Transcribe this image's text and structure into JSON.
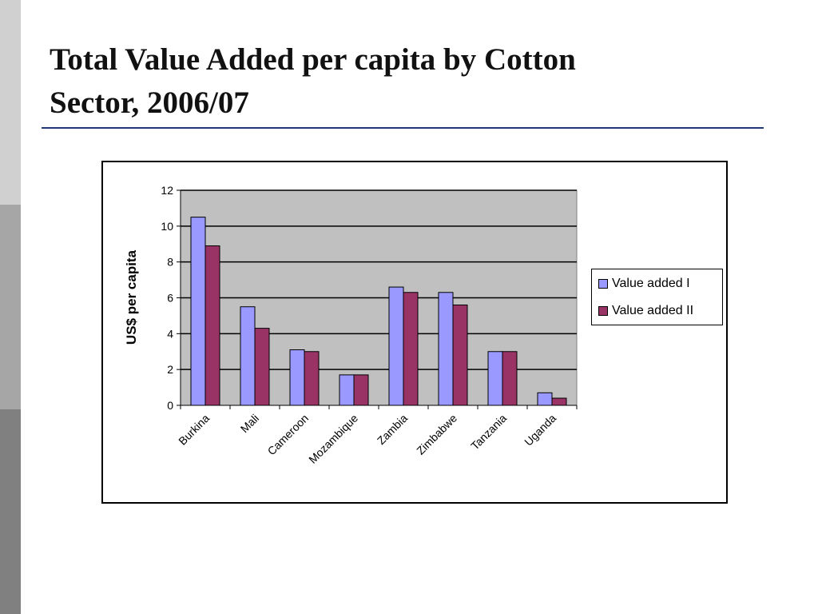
{
  "slide": {
    "title_line1": "Total Value Added per capita by Cotton",
    "title_line2": "Sector, 2006/07"
  },
  "colors": {
    "sidebar_light": "#d0d0d0",
    "sidebar_mid": "#a6a6a6",
    "sidebar_dark": "#808080",
    "title_rule": "#1f3a7a",
    "plot_bg": "#c0c0c0"
  },
  "chart_data": {
    "type": "bar",
    "title": "",
    "xlabel": "",
    "ylabel": "US$ per capita",
    "ylim": [
      0,
      12
    ],
    "yticks": [
      0,
      2,
      4,
      6,
      8,
      10,
      12
    ],
    "grid": true,
    "legend_position": "right",
    "categories": [
      "Burkina",
      "Mali",
      "Cameroon",
      "Mozambique",
      "Zambia",
      "Zimbabwe",
      "Tanzania",
      "Uganda"
    ],
    "series": [
      {
        "name": "Value added I",
        "color": "#9999ff",
        "values": [
          10.5,
          5.5,
          3.1,
          1.7,
          6.6,
          6.3,
          3.0,
          0.7
        ]
      },
      {
        "name": "Value added II",
        "color": "#993366",
        "values": [
          8.9,
          4.3,
          3.0,
          1.7,
          6.3,
          5.6,
          3.0,
          0.4
        ]
      }
    ]
  }
}
